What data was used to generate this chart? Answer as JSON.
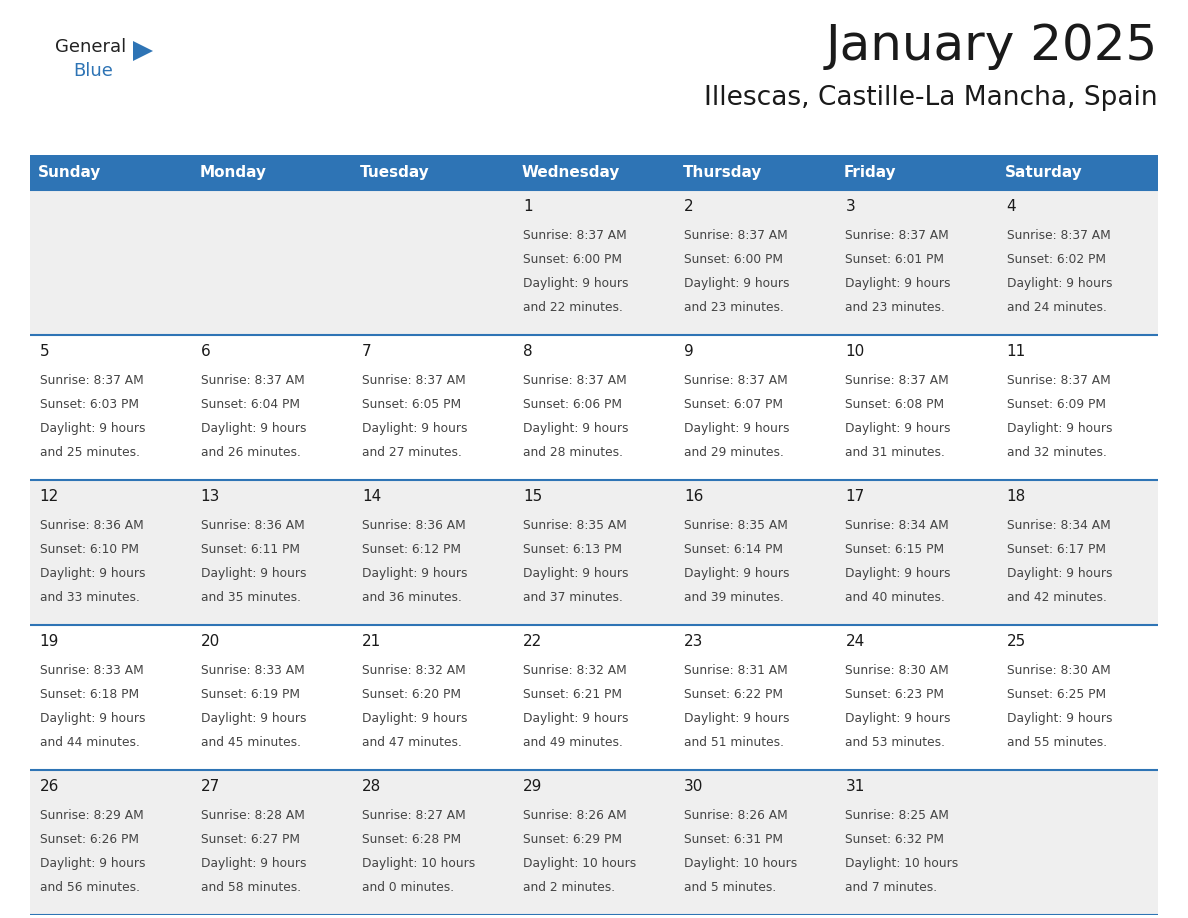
{
  "title": "January 2025",
  "subtitle": "Illescas, Castille-La Mancha, Spain",
  "header_bg": "#2E74B5",
  "header_text": "#FFFFFF",
  "header_font_size": 11,
  "day_names": [
    "Sunday",
    "Monday",
    "Tuesday",
    "Wednesday",
    "Thursday",
    "Friday",
    "Saturday"
  ],
  "row_bg_even": "#EFEFEF",
  "row_bg_odd": "#FFFFFF",
  "title_color": "#1a1a1a",
  "title_fontsize": 36,
  "subtitle_fontsize": 19,
  "day_num_fontsize": 11,
  "cell_text_fontsize": 8.8,
  "days": [
    {
      "date": 1,
      "col": 3,
      "row": 0,
      "sunrise": "8:37 AM",
      "sunset": "6:00 PM",
      "daylight": "9 hours and 22 minutes."
    },
    {
      "date": 2,
      "col": 4,
      "row": 0,
      "sunrise": "8:37 AM",
      "sunset": "6:00 PM",
      "daylight": "9 hours and 23 minutes."
    },
    {
      "date": 3,
      "col": 5,
      "row": 0,
      "sunrise": "8:37 AM",
      "sunset": "6:01 PM",
      "daylight": "9 hours and 23 minutes."
    },
    {
      "date": 4,
      "col": 6,
      "row": 0,
      "sunrise": "8:37 AM",
      "sunset": "6:02 PM",
      "daylight": "9 hours and 24 minutes."
    },
    {
      "date": 5,
      "col": 0,
      "row": 1,
      "sunrise": "8:37 AM",
      "sunset": "6:03 PM",
      "daylight": "9 hours and 25 minutes."
    },
    {
      "date": 6,
      "col": 1,
      "row": 1,
      "sunrise": "8:37 AM",
      "sunset": "6:04 PM",
      "daylight": "9 hours and 26 minutes."
    },
    {
      "date": 7,
      "col": 2,
      "row": 1,
      "sunrise": "8:37 AM",
      "sunset": "6:05 PM",
      "daylight": "9 hours and 27 minutes."
    },
    {
      "date": 8,
      "col": 3,
      "row": 1,
      "sunrise": "8:37 AM",
      "sunset": "6:06 PM",
      "daylight": "9 hours and 28 minutes."
    },
    {
      "date": 9,
      "col": 4,
      "row": 1,
      "sunrise": "8:37 AM",
      "sunset": "6:07 PM",
      "daylight": "9 hours and 29 minutes."
    },
    {
      "date": 10,
      "col": 5,
      "row": 1,
      "sunrise": "8:37 AM",
      "sunset": "6:08 PM",
      "daylight": "9 hours and 31 minutes."
    },
    {
      "date": 11,
      "col": 6,
      "row": 1,
      "sunrise": "8:37 AM",
      "sunset": "6:09 PM",
      "daylight": "9 hours and 32 minutes."
    },
    {
      "date": 12,
      "col": 0,
      "row": 2,
      "sunrise": "8:36 AM",
      "sunset": "6:10 PM",
      "daylight": "9 hours and 33 minutes."
    },
    {
      "date": 13,
      "col": 1,
      "row": 2,
      "sunrise": "8:36 AM",
      "sunset": "6:11 PM",
      "daylight": "9 hours and 35 minutes."
    },
    {
      "date": 14,
      "col": 2,
      "row": 2,
      "sunrise": "8:36 AM",
      "sunset": "6:12 PM",
      "daylight": "9 hours and 36 minutes."
    },
    {
      "date": 15,
      "col": 3,
      "row": 2,
      "sunrise": "8:35 AM",
      "sunset": "6:13 PM",
      "daylight": "9 hours and 37 minutes."
    },
    {
      "date": 16,
      "col": 4,
      "row": 2,
      "sunrise": "8:35 AM",
      "sunset": "6:14 PM",
      "daylight": "9 hours and 39 minutes."
    },
    {
      "date": 17,
      "col": 5,
      "row": 2,
      "sunrise": "8:34 AM",
      "sunset": "6:15 PM",
      "daylight": "9 hours and 40 minutes."
    },
    {
      "date": 18,
      "col": 6,
      "row": 2,
      "sunrise": "8:34 AM",
      "sunset": "6:17 PM",
      "daylight": "9 hours and 42 minutes."
    },
    {
      "date": 19,
      "col": 0,
      "row": 3,
      "sunrise": "8:33 AM",
      "sunset": "6:18 PM",
      "daylight": "9 hours and 44 minutes."
    },
    {
      "date": 20,
      "col": 1,
      "row": 3,
      "sunrise": "8:33 AM",
      "sunset": "6:19 PM",
      "daylight": "9 hours and 45 minutes."
    },
    {
      "date": 21,
      "col": 2,
      "row": 3,
      "sunrise": "8:32 AM",
      "sunset": "6:20 PM",
      "daylight": "9 hours and 47 minutes."
    },
    {
      "date": 22,
      "col": 3,
      "row": 3,
      "sunrise": "8:32 AM",
      "sunset": "6:21 PM",
      "daylight": "9 hours and 49 minutes."
    },
    {
      "date": 23,
      "col": 4,
      "row": 3,
      "sunrise": "8:31 AM",
      "sunset": "6:22 PM",
      "daylight": "9 hours and 51 minutes."
    },
    {
      "date": 24,
      "col": 5,
      "row": 3,
      "sunrise": "8:30 AM",
      "sunset": "6:23 PM",
      "daylight": "9 hours and 53 minutes."
    },
    {
      "date": 25,
      "col": 6,
      "row": 3,
      "sunrise": "8:30 AM",
      "sunset": "6:25 PM",
      "daylight": "9 hours and 55 minutes."
    },
    {
      "date": 26,
      "col": 0,
      "row": 4,
      "sunrise": "8:29 AM",
      "sunset": "6:26 PM",
      "daylight": "9 hours and 56 minutes."
    },
    {
      "date": 27,
      "col": 1,
      "row": 4,
      "sunrise": "8:28 AM",
      "sunset": "6:27 PM",
      "daylight": "9 hours and 58 minutes."
    },
    {
      "date": 28,
      "col": 2,
      "row": 4,
      "sunrise": "8:27 AM",
      "sunset": "6:28 PM",
      "daylight": "10 hours and 0 minutes."
    },
    {
      "date": 29,
      "col": 3,
      "row": 4,
      "sunrise": "8:26 AM",
      "sunset": "6:29 PM",
      "daylight": "10 hours and 2 minutes."
    },
    {
      "date": 30,
      "col": 4,
      "row": 4,
      "sunrise": "8:26 AM",
      "sunset": "6:31 PM",
      "daylight": "10 hours and 5 minutes."
    },
    {
      "date": 31,
      "col": 5,
      "row": 4,
      "sunrise": "8:25 AM",
      "sunset": "6:32 PM",
      "daylight": "10 hours and 7 minutes."
    }
  ]
}
